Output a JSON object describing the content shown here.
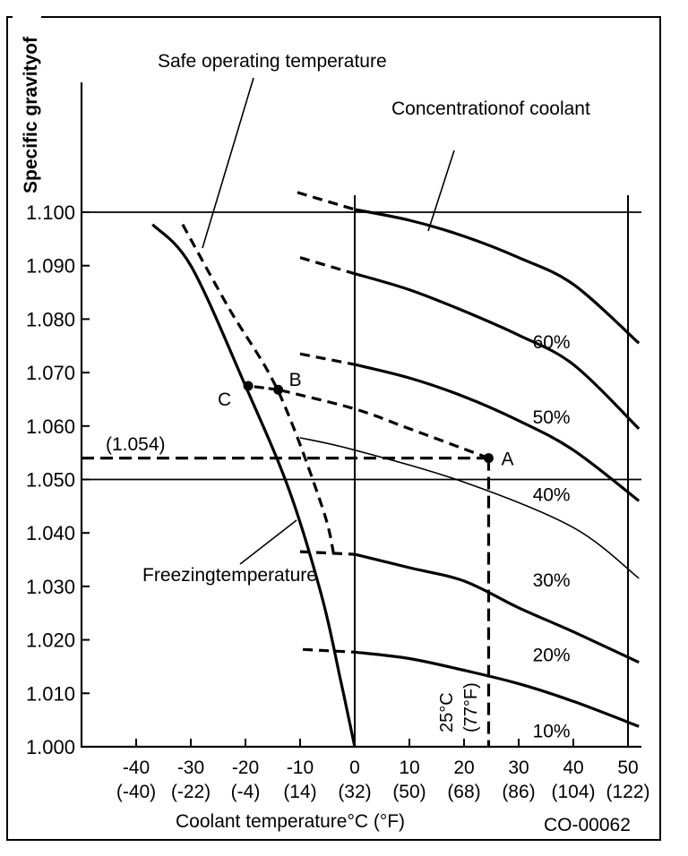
{
  "chart_data": {
    "type": "line",
    "title": "",
    "xlabel": "Coolant temperature°C (°F)",
    "ylabel": "Specific gravityof",
    "xlim": [
      -50,
      52
    ],
    "ylim": [
      1.0,
      1.1
    ],
    "grid": false,
    "code": "CO-00062",
    "x_ticks": [
      {
        "c": "-40",
        "f": "(-40)",
        "value": -40
      },
      {
        "c": "-30",
        "f": "(-22)",
        "value": -30
      },
      {
        "c": "-20",
        "f": "(-4)",
        "value": -20
      },
      {
        "c": "-10",
        "f": "(14)",
        "value": -10
      },
      {
        "c": "0",
        "f": "(32)",
        "value": 0
      },
      {
        "c": "10",
        "f": "(50)",
        "value": 10
      },
      {
        "c": "20",
        "f": "(68)",
        "value": 20
      },
      {
        "c": "30",
        "f": "(86)",
        "value": 30
      },
      {
        "c": "40",
        "f": "(104)",
        "value": 40
      },
      {
        "c": "50",
        "f": "(122)",
        "value": 50
      }
    ],
    "y_ticks": [
      {
        "label": "1.100",
        "value": 1.1
      },
      {
        "label": "1.090",
        "value": 1.09
      },
      {
        "label": "1.080",
        "value": 1.08
      },
      {
        "label": "1.070",
        "value": 1.07
      },
      {
        "label": "1.060",
        "value": 1.06
      },
      {
        "label": "1.050",
        "value": 1.05
      },
      {
        "label": "1.040",
        "value": 1.04
      },
      {
        "label": "1.030",
        "value": 1.03
      },
      {
        "label": "1.020",
        "value": 1.02
      },
      {
        "label": "1.010",
        "value": 1.01
      },
      {
        "label": "1.000",
        "value": 1.0
      }
    ],
    "reference_lines": {
      "horizontal": [
        1.1,
        1.05
      ],
      "vertical": [
        0,
        50
      ]
    },
    "concentration_labels": [
      {
        "text": "60%",
        "x": 36,
        "y": 1.0745
      },
      {
        "text": "50%",
        "x": 36,
        "y": 1.0605
      },
      {
        "text": "40%",
        "x": 36,
        "y": 1.046
      },
      {
        "text": "30%",
        "x": 36,
        "y": 1.03
      },
      {
        "text": "20%",
        "x": 36,
        "y": 1.016
      },
      {
        "text": "10%",
        "x": 36,
        "y": 1.0018
      }
    ],
    "series": [
      {
        "name": "concentration-curve-1",
        "style": "thick",
        "dashed": [
          [
            -10.5,
            1.1037
          ],
          [
            0,
            1.1005
          ]
        ],
        "solid": [
          [
            0,
            1.1005
          ],
          [
            10,
            1.0985
          ],
          [
            20,
            1.0955
          ],
          [
            30,
            1.0915
          ],
          [
            40,
            1.0865
          ],
          [
            52,
            1.0755
          ]
        ]
      },
      {
        "name": "concentration-curve-2",
        "style": "thick",
        "dashed": [
          [
            -10,
            1.0915
          ],
          [
            0,
            1.0885
          ]
        ],
        "solid": [
          [
            0,
            1.0885
          ],
          [
            10,
            1.0855
          ],
          [
            20,
            1.0815
          ],
          [
            30,
            1.077
          ],
          [
            40,
            1.0715
          ],
          [
            52,
            1.0595
          ]
        ]
      },
      {
        "name": "concentration-curve-3",
        "style": "thick",
        "dashed": [
          [
            -10,
            1.0735
          ],
          [
            0,
            1.0715
          ]
        ],
        "solid": [
          [
            0,
            1.0715
          ],
          [
            10,
            1.069
          ],
          [
            20,
            1.0655
          ],
          [
            30,
            1.061
          ],
          [
            40,
            1.0555
          ],
          [
            52,
            1.046
          ]
        ]
      },
      {
        "name": "concentration-curve-4",
        "style": "thin",
        "dashed": [],
        "solid": [
          [
            -10,
            1.0578
          ],
          [
            0,
            1.0555
          ],
          [
            20,
            1.0495
          ],
          [
            40,
            1.041
          ],
          [
            52,
            1.0315
          ]
        ]
      },
      {
        "name": "concentration-curve-5",
        "style": "thick",
        "dashed": [
          [
            -10,
            1.0365
          ],
          [
            0,
            1.036
          ]
        ],
        "solid": [
          [
            0,
            1.036
          ],
          [
            10,
            1.0335
          ],
          [
            20,
            1.031
          ],
          [
            30,
            1.026
          ],
          [
            40,
            1.0215
          ],
          [
            52,
            1.0158
          ]
        ]
      },
      {
        "name": "concentration-curve-6",
        "style": "thick",
        "dashed": [
          [
            -9.5,
            1.0182
          ],
          [
            0,
            1.0177
          ]
        ],
        "solid": [
          [
            0,
            1.0177
          ],
          [
            10,
            1.0165
          ],
          [
            20,
            1.0143
          ],
          [
            30,
            1.0118
          ],
          [
            40,
            1.0085
          ],
          [
            52,
            1.0038
          ]
        ]
      },
      {
        "name": "freezing-temperature-curve",
        "style": "thick",
        "dashed": [],
        "solid": [
          [
            -37,
            1.0977
          ],
          [
            -30,
            1.09
          ],
          [
            -20,
            1.0675
          ],
          [
            -12,
            1.048
          ],
          [
            -6,
            1.028
          ],
          [
            -2.5,
            1.012
          ],
          [
            0,
            1.0
          ]
        ]
      },
      {
        "name": "safe-operating-temperature-curve",
        "style": "dashed-thick",
        "dashed": [
          [
            -31.5,
            1.0977
          ],
          [
            -23,
            1.082
          ],
          [
            -14,
            1.0665
          ],
          [
            -6,
            1.045
          ],
          [
            -3.8,
            1.0358
          ]
        ],
        "solid": []
      }
    ],
    "points": [
      {
        "label": "A",
        "x": 24.5,
        "y": 1.054
      },
      {
        "label": "B",
        "x": -14,
        "y": 1.0668
      },
      {
        "label": "C",
        "x": -19.5,
        "y": 1.0675
      }
    ],
    "guide_lines": {
      "a_to_b": [
        [
          24.5,
          1.054
        ],
        [
          10,
          1.0595
        ],
        [
          0,
          1.0632
        ],
        [
          -14,
          1.0668
        ]
      ],
      "b_to_c": [
        [
          -14,
          1.0668
        ],
        [
          -19.5,
          1.0675
        ]
      ],
      "sg_reading": {
        "label": "(1.054)",
        "value": 1.054
      },
      "temp_reading": {
        "label_c": "25°C",
        "label_f": "(77°F)",
        "value": 25
      }
    },
    "annotations": [
      {
        "text": "Safe operating temperature",
        "target": "safe-operating-temperature-curve"
      },
      {
        "text": "Concentrationof coolant",
        "target": "concentration-curve-1"
      },
      {
        "text": "Freezingtemperature",
        "target": "freezing-temperature-curve"
      }
    ]
  }
}
